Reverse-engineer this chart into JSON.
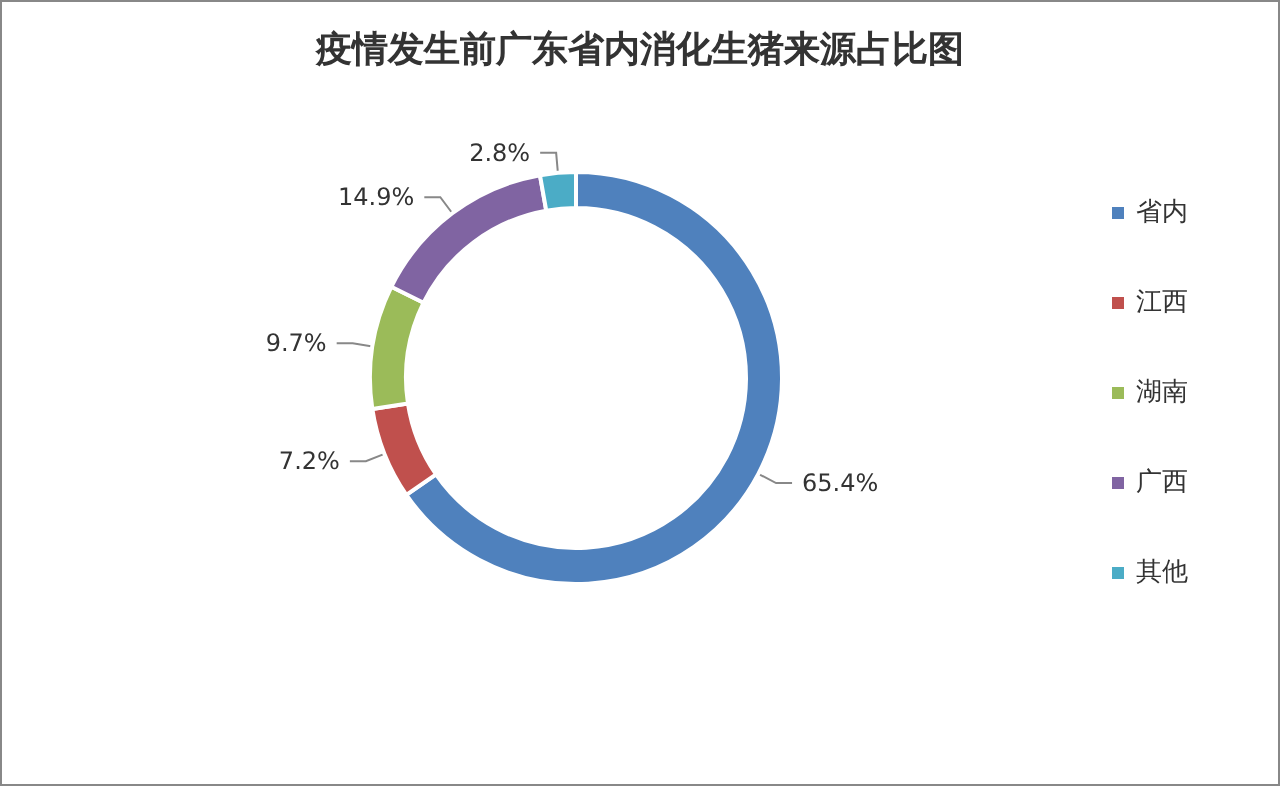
{
  "chart_data": {
    "type": "donut",
    "title": "疫情发生前广东省内消化生猪来源占比图",
    "categories": [
      "省内",
      "江西",
      "湖南",
      "广西",
      "其他"
    ],
    "values": [
      65.4,
      7.2,
      9.7,
      14.9,
      2.8
    ],
    "value_labels": [
      "65.4%",
      "7.2%",
      "9.7%",
      "14.9%",
      "2.8%"
    ],
    "colors": [
      "#4f81bd",
      "#c0504d",
      "#9bbb59",
      "#8064a2",
      "#4bacc6"
    ],
    "legend": "right"
  }
}
